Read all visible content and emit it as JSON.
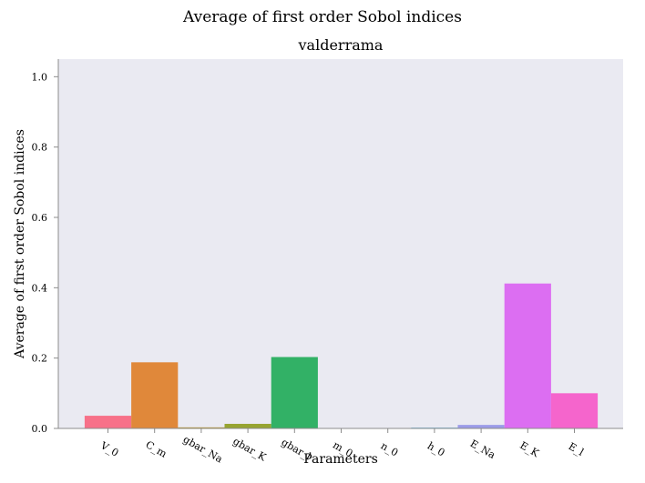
{
  "chart_data": {
    "type": "bar",
    "suptitle": "Average of first order Sobol indices",
    "title": "valderrama",
    "xlabel": "Parameters",
    "ylabel": "Average of first order Sobol indices",
    "categories": [
      "V_0",
      "C_m",
      "gbar_Na",
      "gbar_K",
      "gbar_l",
      "m_0",
      "n_0",
      "h_0",
      "E_Na",
      "E_K",
      "E_l"
    ],
    "values": [
      0.036,
      0.188,
      0.003,
      0.013,
      0.203,
      0.0,
      0.0,
      0.002,
      0.01,
      0.412,
      0.1
    ],
    "colors": [
      "#f77189",
      "#e0883a",
      "#bb9832",
      "#97a431",
      "#32b166",
      "#36ada4",
      "#39a7d0",
      "#3ba3d5",
      "#9b9be8",
      "#dc6ef2",
      "#f565cc"
    ],
    "ylim": [
      0,
      1.05
    ],
    "yticks": [
      "0.0",
      "0.2",
      "0.4",
      "0.6",
      "0.8",
      "1.0"
    ],
    "ytick_values": [
      0.0,
      0.2,
      0.4,
      0.6,
      0.8,
      1.0
    ],
    "background": "#eaeaf2",
    "grid": false,
    "legend": "none"
  }
}
